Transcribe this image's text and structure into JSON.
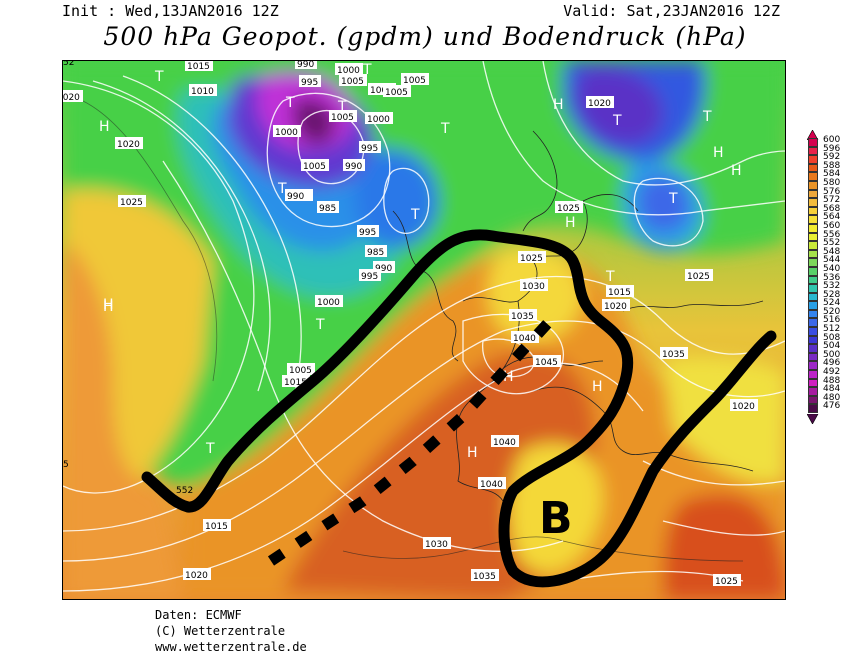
{
  "header": {
    "init": "Init : Wed,13JAN2016 12Z",
    "valid": "Valid: Sat,23JAN2016 12Z",
    "title": "500 hPa Geopot. (gpdm) und Bodendruck (hPa)"
  },
  "footer": {
    "source": "Daten: ECMWF",
    "copyright": "(C) Wetterzentrale",
    "url": "www.wetterzentrale.de"
  },
  "legend": {
    "values": [
      "600",
      "596",
      "592",
      "588",
      "584",
      "580",
      "576",
      "572",
      "568",
      "564",
      "560",
      "556",
      "552",
      "548",
      "544",
      "540",
      "536",
      "532",
      "528",
      "524",
      "520",
      "516",
      "512",
      "508",
      "504",
      "500",
      "496",
      "492",
      "488",
      "484",
      "480",
      "476"
    ],
    "colors": [
      "#d4004e",
      "#e8214a",
      "#f0402c",
      "#e85a18",
      "#e8781c",
      "#ea9428",
      "#efa83a",
      "#f3bc3c",
      "#f6d03a",
      "#f6e038",
      "#f2ec30",
      "#e8f034",
      "#caea3a",
      "#a6e24a",
      "#7cd85a",
      "#58d068",
      "#40cc8a",
      "#30c6ae",
      "#2ab8d0",
      "#2aa0e6",
      "#3484ee",
      "#3c68e8",
      "#3a4ee0",
      "#3c38d4",
      "#5a30c6",
      "#7a2cc2",
      "#9c28c6",
      "#bc24c8",
      "#d01ec0",
      "#a61aa0",
      "#7a1470",
      "#4a0a48"
    ]
  },
  "map": {
    "colors": {
      "magenta": "#c030d8",
      "green": "#40d040",
      "orange": "#e88a30",
      "yellow": "#f4e030",
      "red": "#d8501c"
    },
    "centers": [
      {
        "letter": "H",
        "label": "H"
      },
      {
        "letter": "T",
        "label": "T"
      },
      {
        "letter": "H",
        "label": "H"
      },
      {
        "letter": "T",
        "label": "T"
      },
      {
        "letter": "T",
        "label": "T"
      },
      {
        "letter": "T",
        "label": "T"
      },
      {
        "letter": "T",
        "label": "T"
      },
      {
        "letter": "H",
        "label": "H"
      },
      {
        "letter": "T",
        "label": "T"
      },
      {
        "letter": "T",
        "label": "T"
      },
      {
        "letter": "H",
        "label": "H"
      },
      {
        "letter": "T",
        "label": "T"
      },
      {
        "letter": "T",
        "label": "T"
      },
      {
        "letter": "H",
        "label": "H"
      },
      {
        "letter": "T",
        "label": "T"
      },
      {
        "letter": "T",
        "label": "T"
      },
      {
        "letter": "H",
        "label": "H"
      },
      {
        "letter": "T",
        "label": "T"
      },
      {
        "letter": "H",
        "label": "H"
      },
      {
        "letter": "H",
        "label": "H"
      },
      {
        "letter": "H",
        "label": "H"
      },
      {
        "letter": "H",
        "label": "H"
      },
      {
        "letter": "T",
        "label": "T"
      }
    ],
    "pressure_labels": [
      "1015",
      "1010",
      "1020",
      "1020",
      "1025",
      "990",
      "995",
      "1000",
      "1005",
      "1000",
      "1005",
      "1005",
      "1005",
      "1000",
      "1000",
      "995",
      "990",
      "1005",
      "985",
      "990",
      "985",
      "995",
      "990",
      "995",
      "1000",
      "1005",
      "1015",
      "1025",
      "1020",
      "1025",
      "1030",
      "1035",
      "1040",
      "1045",
      "1035",
      "1015",
      "1020",
      "1025",
      "1040",
      "1040",
      "1030",
      "1035",
      "1020",
      "1025",
      "1015",
      "1020"
    ],
    "height_labels": [
      "552",
      "5",
      "52"
    ],
    "overlay_letter": "B"
  }
}
